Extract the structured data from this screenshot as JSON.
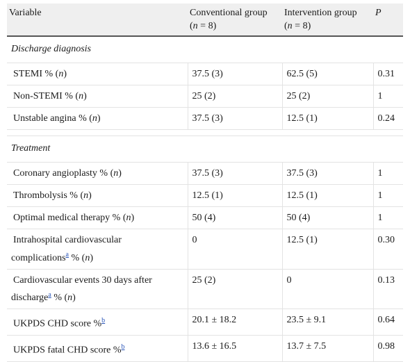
{
  "header": {
    "variable": "Variable",
    "conv_line1": "Conventional group",
    "conv_line2_open": "(",
    "n": "n",
    "conv_line2_close": " = 8)",
    "int_line1": "Intervention group",
    "int_line2_close": " = 8)",
    "p": "P"
  },
  "sections": {
    "discharge": "Discharge diagnosis",
    "treatment": "Treatment"
  },
  "rows": [
    {
      "label": "STEMI % (",
      "n": "n",
      "close": ")",
      "conv": "37.5 (3)",
      "int": "62.5 (5)",
      "p": "0.31"
    },
    {
      "label": "Non-STEMI % (",
      "n": "n",
      "close": ")",
      "conv": "25 (2)",
      "int": "25 (2)",
      "p": "1"
    },
    {
      "label": "Unstable angina % (",
      "n": "n",
      "close": ")",
      "conv": "37.5 (3)",
      "int": "12.5 (1)",
      "p": "0.24"
    },
    {
      "label": "Coronary angioplasty % (",
      "n": "n",
      "close": ")",
      "conv": "37.5 (3)",
      "int": "37.5 (3)",
      "p": "1"
    },
    {
      "label": "Thrombolysis % (",
      "n": "n",
      "close": ")",
      "conv": "12.5 (1)",
      "int": "12.5 (1)",
      "p": "1"
    },
    {
      "label": "Optimal medical therapy % (",
      "n": "n",
      "close": ")",
      "conv": "50 (4)",
      "int": "50 (4)",
      "p": "1"
    },
    {
      "line1": "Intrahospital cardiovascular",
      "line2": "complications",
      "sup": "a",
      "tail": " % (",
      "n": "n",
      "close": ")",
      "conv": "0",
      "int": "12.5 (1)",
      "p": "0.30"
    },
    {
      "line1": "Cardiovascular events 30 days after",
      "line2": "discharge",
      "sup": "a",
      "tail": " % (",
      "n": "n",
      "close": ")",
      "conv": "25 (2)",
      "int": "0",
      "p": "0.13"
    },
    {
      "label": "UKPDS CHD score %",
      "sup": "b",
      "conv": "20.1 ± 18.2",
      "int": "23.5 ± 9.1",
      "p": "0.64"
    },
    {
      "label": "UKPDS fatal CHD score %",
      "sup": "b",
      "conv": "13.6 ± 16.5",
      "int": "13.7 ± 7.5",
      "p": "0.98"
    }
  ]
}
